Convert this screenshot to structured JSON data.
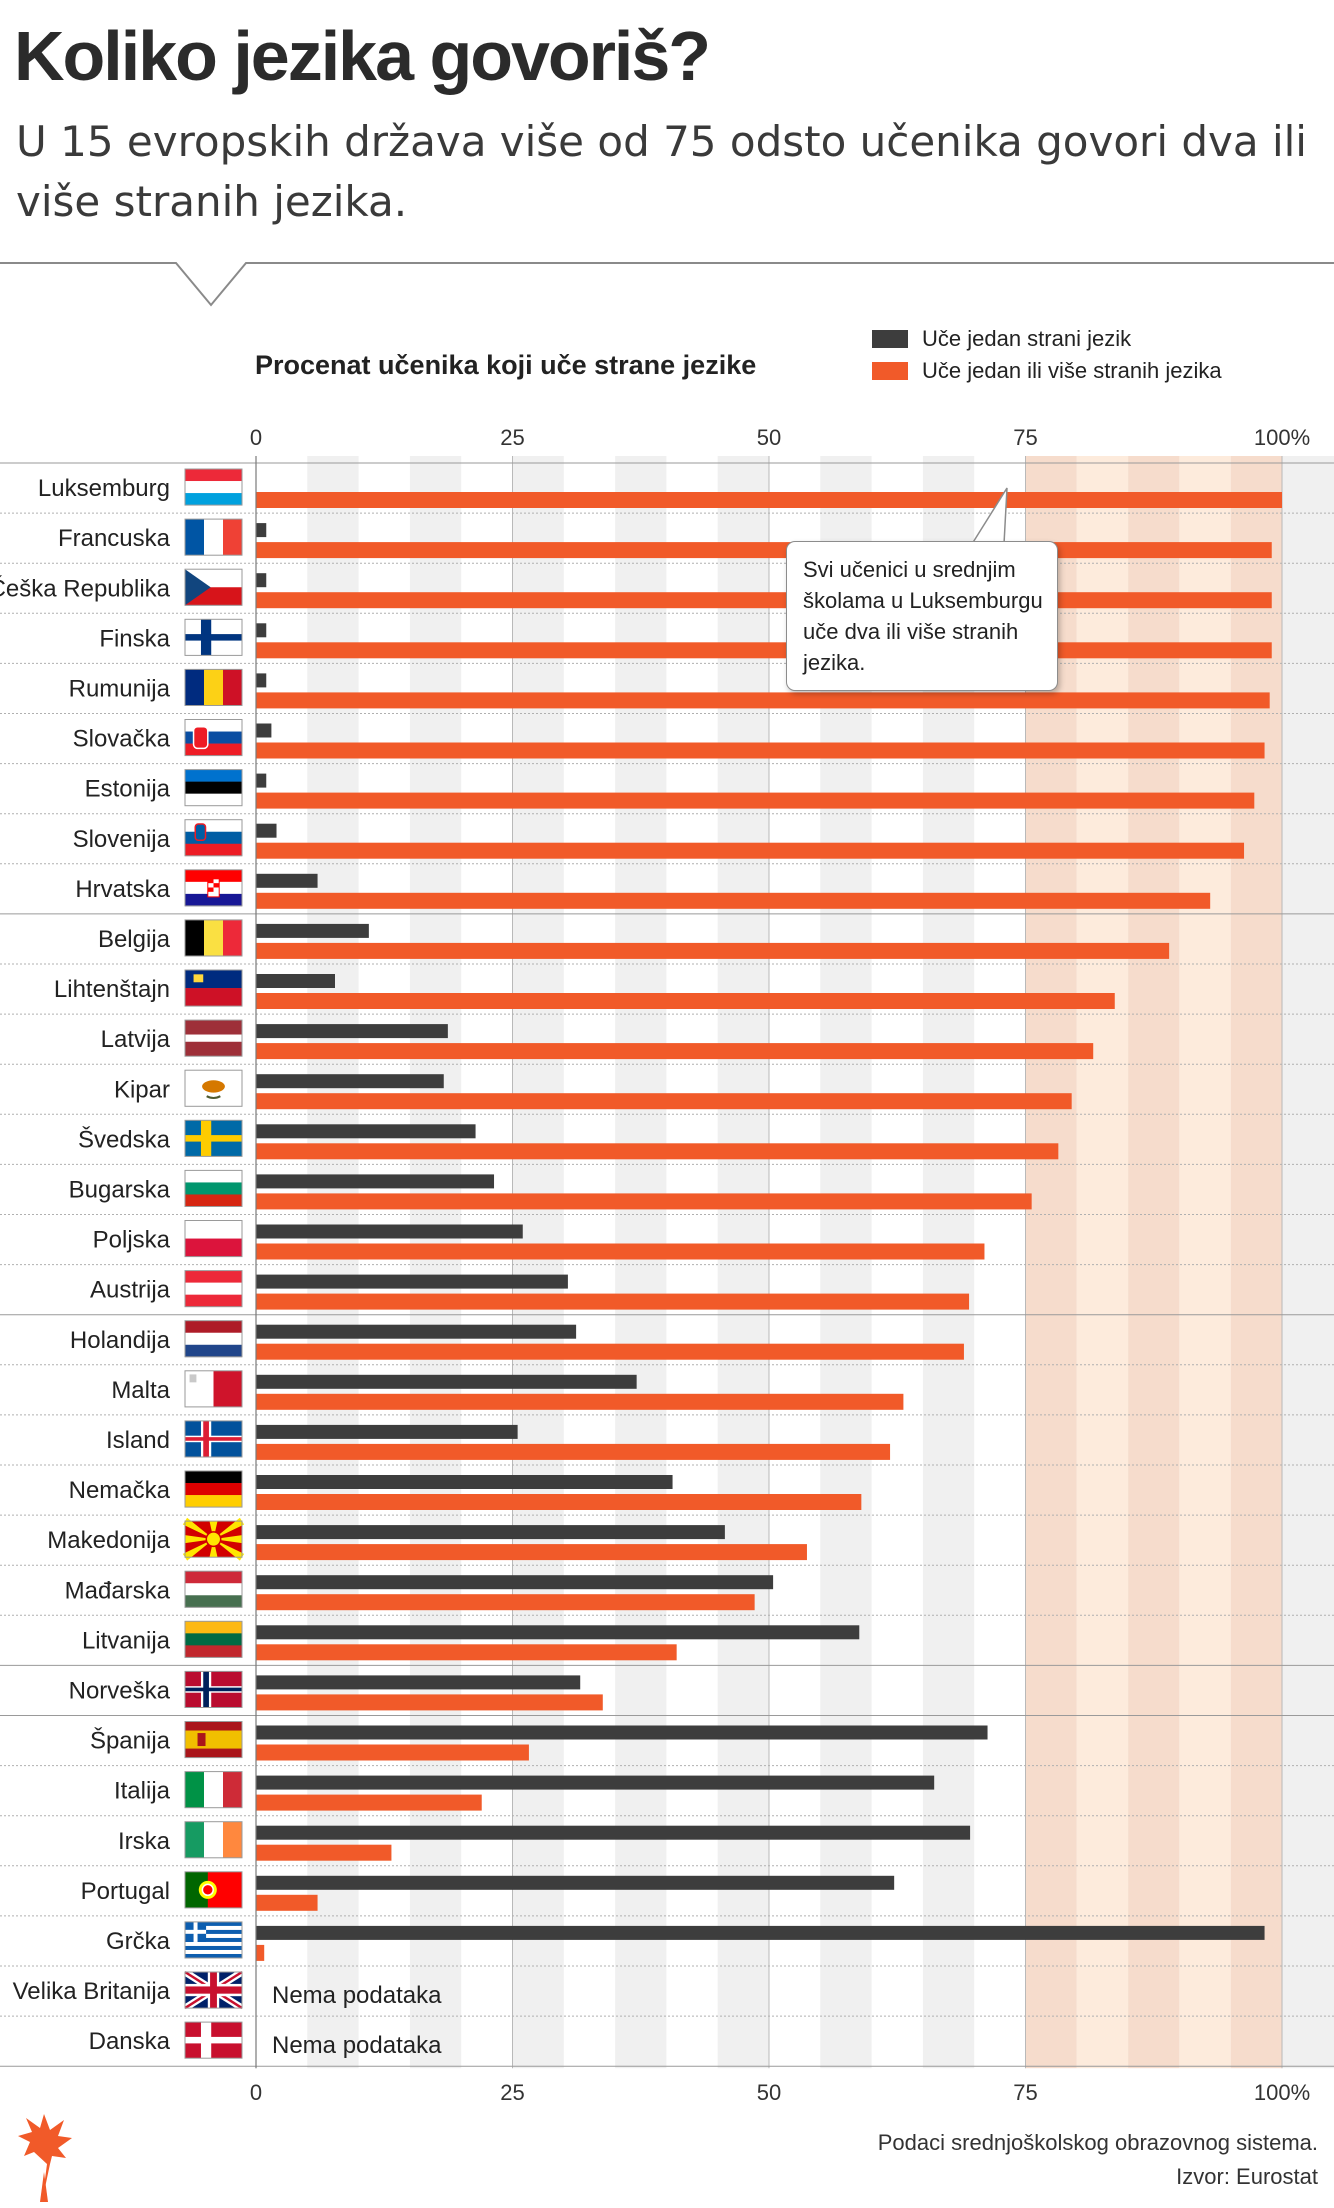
{
  "header": {
    "title": "Koliko jezika govoriš?",
    "subtitle": "U 15 evropskih država više od 75 odsto učenika govori dva ili više stranih jezika."
  },
  "legend": {
    "one_language": "Uče jedan strani jezik",
    "two_or_more": "Uče jedan ili više stranih jezika"
  },
  "callout": {
    "text": "Svi učenici u srednjim školama u Luksemburgu uče dva ili više stranih jezika."
  },
  "footer": {
    "note": "Podaci srednjoškolskog obrazovnog sistema.",
    "source": "Izvor: Eurostat"
  },
  "colors": {
    "dark": "#3d3d3d",
    "orange": "#f15a29",
    "band_light": "#f0f0f0",
    "highlight": "#fdebdc",
    "highlight_dark": "#f6dccc"
  },
  "chart_data": {
    "type": "bar",
    "orientation": "horizontal",
    "title": "Procenat učenika koji uče strane jezike",
    "xlim": [
      0,
      100
    ],
    "ticks": [
      "0",
      "25",
      "50",
      "75",
      "100%"
    ],
    "no_data_label": "Nema podataka",
    "series": [
      {
        "name": "Uče jedan strani jezik",
        "color": "#3d3d3d"
      },
      {
        "name": "Uče jedan ili više stranih jezika",
        "color": "#f15a29"
      }
    ],
    "rows": [
      {
        "country": "Luksemburg",
        "flag": "lu",
        "one": 0,
        "multi": 100
      },
      {
        "country": "Francuska",
        "flag": "fr",
        "one": 1,
        "multi": 99
      },
      {
        "country": "Češka Republika",
        "flag": "cz",
        "one": 1,
        "multi": 99
      },
      {
        "country": "Finska",
        "flag": "fi",
        "one": 1,
        "multi": 99
      },
      {
        "country": "Rumunija",
        "flag": "ro",
        "one": 1,
        "multi": 98.8
      },
      {
        "country": "Slovačka",
        "flag": "sk",
        "one": 1.5,
        "multi": 98.3
      },
      {
        "country": "Estonija",
        "flag": "ee",
        "one": 1,
        "multi": 97.3
      },
      {
        "country": "Slovenija",
        "flag": "si",
        "one": 2,
        "multi": 96.3
      },
      {
        "country": "Hrvatska",
        "flag": "hr",
        "one": 6,
        "multi": 93
      },
      {
        "country": "Belgija",
        "flag": "be",
        "one": 11,
        "multi": 89
      },
      {
        "country": "Lihtenštajn",
        "flag": "li",
        "one": 7.7,
        "multi": 83.7
      },
      {
        "country": "Latvija",
        "flag": "lv",
        "one": 18.7,
        "multi": 81.6
      },
      {
        "country": "Kipar",
        "flag": "cy",
        "one": 18.3,
        "multi": 79.5
      },
      {
        "country": "Švedska",
        "flag": "se",
        "one": 21.4,
        "multi": 78.2
      },
      {
        "country": "Bugarska",
        "flag": "bg",
        "one": 23.2,
        "multi": 75.6
      },
      {
        "country": "Poljska",
        "flag": "pl",
        "one": 26,
        "multi": 71
      },
      {
        "country": "Austrija",
        "flag": "at",
        "one": 30.4,
        "multi": 69.5
      },
      {
        "country": "Holandija",
        "flag": "nl",
        "one": 31.2,
        "multi": 69
      },
      {
        "country": "Malta",
        "flag": "mt",
        "one": 37.1,
        "multi": 63.1
      },
      {
        "country": "Island",
        "flag": "is",
        "one": 25.5,
        "multi": 61.8
      },
      {
        "country": "Nemačka",
        "flag": "de",
        "one": 40.6,
        "multi": 59
      },
      {
        "country": "Makedonija",
        "flag": "mk",
        "one": 45.7,
        "multi": 53.7
      },
      {
        "country": "Mađarska",
        "flag": "hu",
        "one": 50.4,
        "multi": 48.6
      },
      {
        "country": "Litvanija",
        "flag": "lt",
        "one": 58.8,
        "multi": 41
      },
      {
        "country": "Norveška",
        "flag": "no",
        "one": 31.6,
        "multi": 33.8
      },
      {
        "country": "Španija",
        "flag": "es",
        "one": 71.3,
        "multi": 26.6
      },
      {
        "country": "Italija",
        "flag": "it",
        "one": 66.1,
        "multi": 22
      },
      {
        "country": "Irska",
        "flag": "ie",
        "one": 69.6,
        "multi": 13.2
      },
      {
        "country": "Portugal",
        "flag": "pt",
        "one": 62.2,
        "multi": 6
      },
      {
        "country": "Grčka",
        "flag": "gr",
        "one": 98.3,
        "multi": 0.8
      },
      {
        "country": "Velika Britanija",
        "flag": "gb",
        "one": null,
        "multi": null
      },
      {
        "country": "Danska",
        "flag": "dk",
        "one": null,
        "multi": null
      }
    ]
  }
}
